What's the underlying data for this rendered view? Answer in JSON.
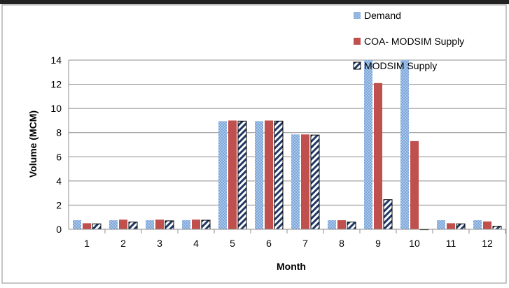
{
  "chart_data": {
    "type": "bar",
    "title": "",
    "xlabel": "Month",
    "ylabel": "Volume (MCM)",
    "ylim": [
      0,
      14
    ],
    "yticks": [
      0,
      2,
      4,
      6,
      8,
      10,
      12,
      14
    ],
    "grid": "horizontal",
    "legend_position": "top-right",
    "categories": [
      "1",
      "2",
      "3",
      "4",
      "5",
      "6",
      "7",
      "8",
      "9",
      "10",
      "11",
      "12"
    ],
    "series": [
      {
        "name": "Demand",
        "color": "#9bbde6",
        "pattern": "dotted",
        "values": [
          0.75,
          0.75,
          0.75,
          0.75,
          8.95,
          8.95,
          7.85,
          0.75,
          14.0,
          14.0,
          0.75,
          0.75
        ]
      },
      {
        "name": "COA- MODSIM Supply",
        "color": "#c0504d",
        "pattern": "solid",
        "values": [
          0.5,
          0.8,
          0.8,
          0.8,
          9.0,
          9.0,
          7.85,
          0.75,
          12.1,
          7.3,
          0.5,
          0.65
        ]
      },
      {
        "name": "MODSIM Supply",
        "color": "#1f3864",
        "pattern": "diagonal",
        "values": [
          0.45,
          0.6,
          0.7,
          0.75,
          8.95,
          8.95,
          7.8,
          0.6,
          2.45,
          0.0,
          0.45,
          0.25
        ]
      }
    ]
  }
}
